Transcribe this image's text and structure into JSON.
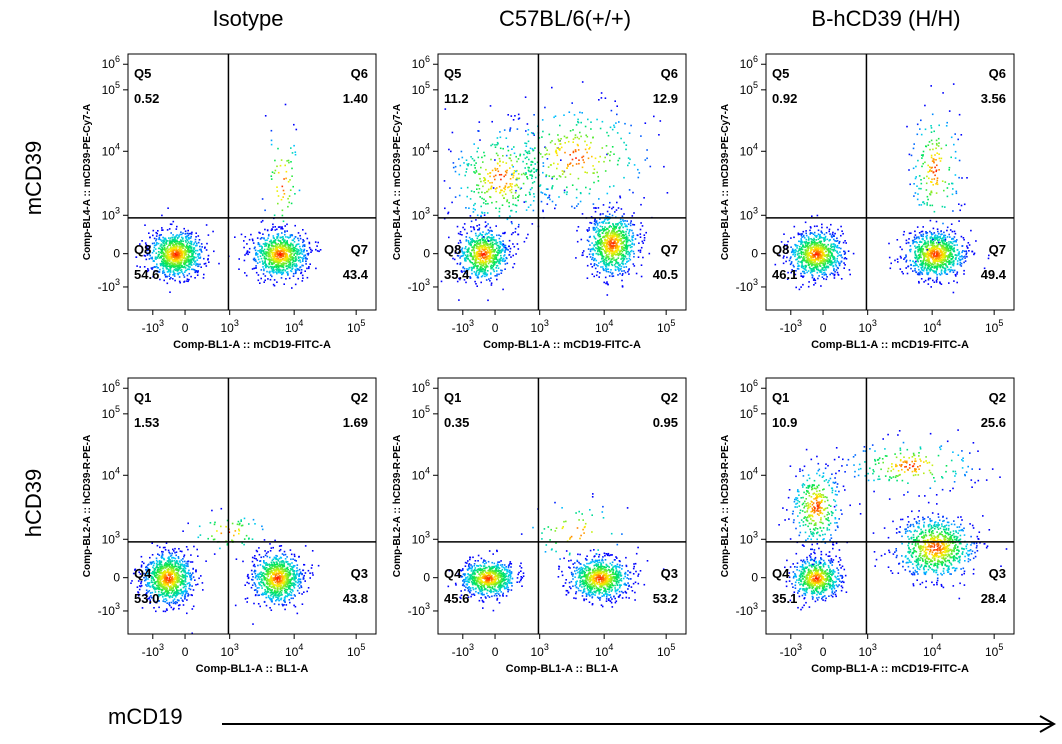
{
  "column_titles": [
    "Isotype",
    "C57BL/6(+/+)",
    "B-hCD39 (H/H)"
  ],
  "row_titles": [
    "mCD39",
    "hCD39"
  ],
  "x_axis_marker": "mCD19",
  "colors": {
    "axis": "#000000",
    "density_low": "#0000ff",
    "density_high": "#ff0000"
  },
  "chart_data": [
    {
      "type": "scatter",
      "id": "r1c1",
      "xlabel": "Comp-BL1-A :: mCD19-FITC-A",
      "ylabel": "Comp-BL4-A :: mCD39-PE-Cy7-A",
      "x_ticks": [
        "-10^3",
        "0",
        "10^3",
        "10^4",
        "10^5"
      ],
      "y_ticks": [
        "-10^3",
        "0",
        "10^3",
        "10^4",
        "10^5",
        "10^6"
      ],
      "quadrants": [
        {
          "name": "Q5",
          "value": "0.52"
        },
        {
          "name": "Q6",
          "value": "1.40"
        },
        {
          "name": "Q8",
          "value": "54.6"
        },
        {
          "name": "Q7",
          "value": "43.4"
        }
      ],
      "gate": {
        "x": "10^3",
        "y": "10^3"
      }
    },
    {
      "type": "scatter",
      "id": "r1c2",
      "xlabel": "Comp-BL1-A :: mCD19-FITC-A",
      "ylabel": "Comp-BL4-A :: mCD39-PE-Cy7-A",
      "x_ticks": [
        "-10^3",
        "0",
        "10^3",
        "10^4",
        "10^5"
      ],
      "y_ticks": [
        "-10^3",
        "0",
        "10^3",
        "10^4",
        "10^5",
        "10^6"
      ],
      "quadrants": [
        {
          "name": "Q5",
          "value": "11.2"
        },
        {
          "name": "Q6",
          "value": "12.9"
        },
        {
          "name": "Q8",
          "value": "35.4"
        },
        {
          "name": "Q7",
          "value": "40.5"
        }
      ],
      "gate": {
        "x": "10^3",
        "y": "10^3"
      }
    },
    {
      "type": "scatter",
      "id": "r1c3",
      "xlabel": "Comp-BL1-A :: mCD19-FITC-A",
      "ylabel": "Comp-BL4-A :: mCD39-PE-Cy7-A",
      "x_ticks": [
        "-10^3",
        "0",
        "10^3",
        "10^4",
        "10^5"
      ],
      "y_ticks": [
        "-10^3",
        "0",
        "10^3",
        "10^4",
        "10^5",
        "10^6"
      ],
      "quadrants": [
        {
          "name": "Q5",
          "value": "0.92"
        },
        {
          "name": "Q6",
          "value": "3.56"
        },
        {
          "name": "Q8",
          "value": "46.1"
        },
        {
          "name": "Q7",
          "value": "49.4"
        }
      ],
      "gate": {
        "x": "10^3",
        "y": "10^3"
      }
    },
    {
      "type": "scatter",
      "id": "r2c1",
      "xlabel": "Comp-BL1-A :: BL1-A",
      "ylabel": "Comp-BL2-A :: hCD39-R-PE-A",
      "x_ticks": [
        "-10^3",
        "0",
        "10^3",
        "10^4",
        "10^5"
      ],
      "y_ticks": [
        "-10^3",
        "0",
        "10^3",
        "10^4",
        "10^5",
        "10^6"
      ],
      "quadrants": [
        {
          "name": "Q1",
          "value": "1.53"
        },
        {
          "name": "Q2",
          "value": "1.69"
        },
        {
          "name": "Q4",
          "value": "53.0"
        },
        {
          "name": "Q3",
          "value": "43.8"
        }
      ],
      "gate": {
        "x": "10^3",
        "y": "10^3"
      }
    },
    {
      "type": "scatter",
      "id": "r2c2",
      "xlabel": "Comp-BL1-A :: BL1-A",
      "ylabel": "Comp-BL2-A :: hCD39-R-PE-A",
      "x_ticks": [
        "-10^3",
        "0",
        "10^3",
        "10^4",
        "10^5"
      ],
      "y_ticks": [
        "-10^3",
        "0",
        "10^3",
        "10^4",
        "10^5",
        "10^6"
      ],
      "quadrants": [
        {
          "name": "Q1",
          "value": "0.35"
        },
        {
          "name": "Q2",
          "value": "0.95"
        },
        {
          "name": "Q4",
          "value": "45.6"
        },
        {
          "name": "Q3",
          "value": "53.2"
        }
      ],
      "gate": {
        "x": "10^3",
        "y": "10^3"
      }
    },
    {
      "type": "scatter",
      "id": "r2c3",
      "xlabel": "Comp-BL1-A :: mCD19-FITC-A",
      "ylabel": "Comp-BL2-A :: hCD39-R-PE-A",
      "x_ticks": [
        "-10^3",
        "0",
        "10^3",
        "10^4",
        "10^5"
      ],
      "y_ticks": [
        "-10^3",
        "0",
        "10^3",
        "10^4",
        "10^5",
        "10^6"
      ],
      "quadrants": [
        {
          "name": "Q1",
          "value": "10.9"
        },
        {
          "name": "Q2",
          "value": "25.6"
        },
        {
          "name": "Q4",
          "value": "35.1"
        },
        {
          "name": "Q3",
          "value": "28.4"
        }
      ],
      "gate": {
        "x": "10^3",
        "y": "10^3"
      }
    }
  ]
}
